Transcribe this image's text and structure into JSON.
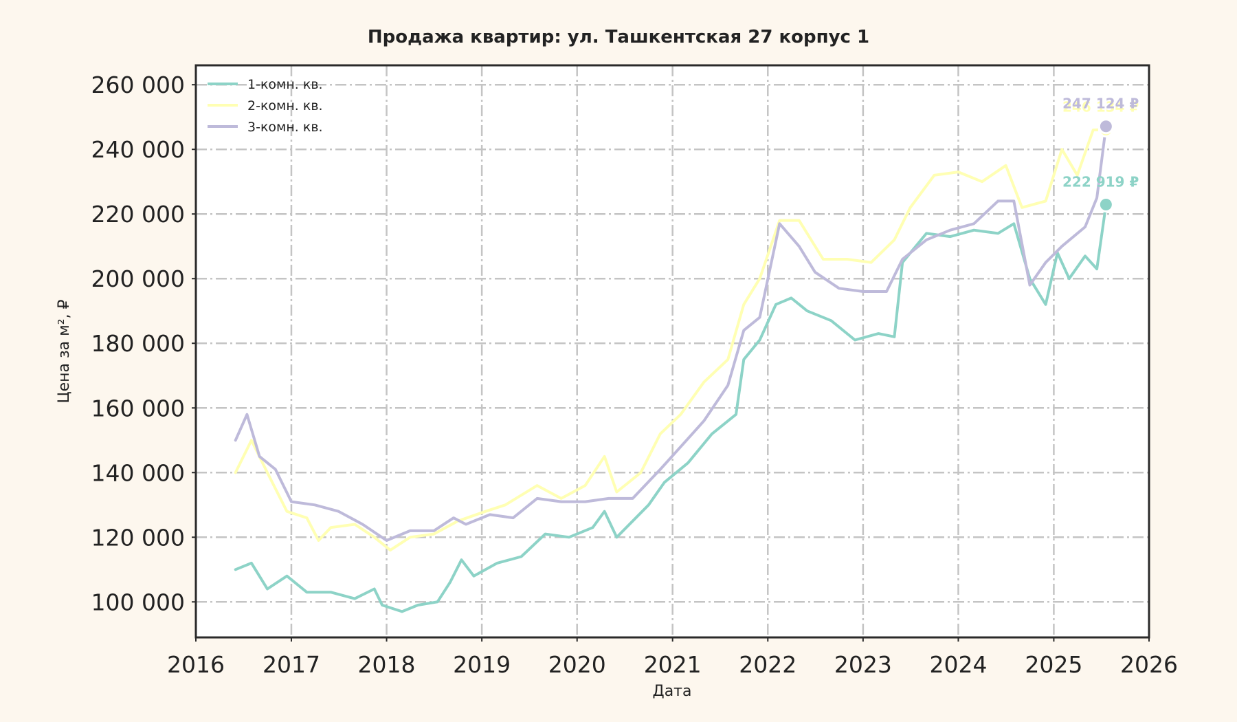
{
  "chart_data": {
    "type": "line",
    "title": "Продажа квартир: ул. Ташкентская 27 корпус 1",
    "xlabel": "Дата",
    "ylabel": "Цена за м², ₽",
    "xlim": [
      "2016-01-01",
      "2026-01-01"
    ],
    "ylim": [
      89000,
      266000
    ],
    "x_ticks": [
      "2016",
      "2017",
      "2018",
      "2019",
      "2020",
      "2021",
      "2022",
      "2023",
      "2024",
      "2025",
      "2026"
    ],
    "y_ticks": [
      {
        "value": 100000,
        "label": "100 000"
      },
      {
        "value": 120000,
        "label": "120 000"
      },
      {
        "value": 140000,
        "label": "140 000"
      },
      {
        "value": 160000,
        "label": "160 000"
      },
      {
        "value": 180000,
        "label": "180 000"
      },
      {
        "value": 200000,
        "label": "200 000"
      },
      {
        "value": 220000,
        "label": "220 000"
      },
      {
        "value": 240000,
        "label": "240 000"
      },
      {
        "value": 260000,
        "label": "260 000"
      }
    ],
    "grid": true,
    "legend_position": "top-left",
    "series": [
      {
        "name": "1-комн. кв.",
        "color": "#8dd3c7",
        "points": [
          [
            "2016-06-01",
            110000
          ],
          [
            "2016-08-01",
            112000
          ],
          [
            "2016-10-01",
            104000
          ],
          [
            "2016-12-15",
            108000
          ],
          [
            "2017-03-01",
            103000
          ],
          [
            "2017-06-01",
            103000
          ],
          [
            "2017-09-01",
            101000
          ],
          [
            "2017-11-15",
            104000
          ],
          [
            "2017-12-15",
            99000
          ],
          [
            "2018-03-01",
            97000
          ],
          [
            "2018-05-01",
            99000
          ],
          [
            "2018-07-15",
            100000
          ],
          [
            "2018-09-01",
            106000
          ],
          [
            "2018-10-15",
            113000
          ],
          [
            "2018-12-01",
            108000
          ],
          [
            "2019-03-01",
            112000
          ],
          [
            "2019-06-01",
            114000
          ],
          [
            "2019-09-01",
            121000
          ],
          [
            "2019-12-01",
            120000
          ],
          [
            "2020-03-01",
            123000
          ],
          [
            "2020-04-15",
            128000
          ],
          [
            "2020-06-01",
            120000
          ],
          [
            "2020-08-01",
            125000
          ],
          [
            "2020-10-01",
            130000
          ],
          [
            "2020-12-01",
            137000
          ],
          [
            "2021-03-01",
            143000
          ],
          [
            "2021-06-01",
            152000
          ],
          [
            "2021-09-01",
            158000
          ],
          [
            "2021-10-01",
            175000
          ],
          [
            "2021-12-01",
            181000
          ],
          [
            "2022-02-01",
            192000
          ],
          [
            "2022-04-01",
            194000
          ],
          [
            "2022-06-01",
            190000
          ],
          [
            "2022-09-01",
            187000
          ],
          [
            "2022-12-01",
            181000
          ],
          [
            "2023-03-01",
            183000
          ],
          [
            "2023-05-01",
            182000
          ],
          [
            "2023-06-01",
            205000
          ],
          [
            "2023-09-01",
            214000
          ],
          [
            "2023-12-01",
            213000
          ],
          [
            "2024-03-01",
            215000
          ],
          [
            "2024-06-01",
            214000
          ],
          [
            "2024-08-01",
            217000
          ],
          [
            "2024-10-01",
            200000
          ],
          [
            "2024-12-01",
            192000
          ],
          [
            "2025-01-15",
            208000
          ],
          [
            "2025-03-01",
            200000
          ],
          [
            "2025-05-01",
            207000
          ],
          [
            "2025-06-15",
            203000
          ],
          [
            "2025-07-20",
            222919
          ]
        ],
        "last_value": 222919,
        "last_label": "222 919 ₽"
      },
      {
        "name": "2-комн. кв.",
        "color": "#ffffb3",
        "points": [
          [
            "2016-06-01",
            140000
          ],
          [
            "2016-08-01",
            150000
          ],
          [
            "2016-10-01",
            140000
          ],
          [
            "2016-12-15",
            128000
          ],
          [
            "2017-03-01",
            126000
          ],
          [
            "2017-04-15",
            119000
          ],
          [
            "2017-06-01",
            123000
          ],
          [
            "2017-09-01",
            124000
          ],
          [
            "2017-11-15",
            120000
          ],
          [
            "2018-01-15",
            116000
          ],
          [
            "2018-04-01",
            120000
          ],
          [
            "2018-07-01",
            121000
          ],
          [
            "2018-10-01",
            125000
          ],
          [
            "2019-01-15",
            128000
          ],
          [
            "2019-04-01",
            130000
          ],
          [
            "2019-08-01",
            136000
          ],
          [
            "2019-11-01",
            132000
          ],
          [
            "2020-02-01",
            136000
          ],
          [
            "2020-04-15",
            145000
          ],
          [
            "2020-06-01",
            134000
          ],
          [
            "2020-09-01",
            140000
          ],
          [
            "2020-11-15",
            152000
          ],
          [
            "2021-02-01",
            158000
          ],
          [
            "2021-05-01",
            168000
          ],
          [
            "2021-08-01",
            175000
          ],
          [
            "2021-10-01",
            192000
          ],
          [
            "2021-12-01",
            200000
          ],
          [
            "2022-02-15",
            218000
          ],
          [
            "2022-05-01",
            218000
          ],
          [
            "2022-08-01",
            206000
          ],
          [
            "2022-11-01",
            206000
          ],
          [
            "2023-02-01",
            205000
          ],
          [
            "2023-05-01",
            212000
          ],
          [
            "2023-07-01",
            222000
          ],
          [
            "2023-10-01",
            232000
          ],
          [
            "2024-01-01",
            233000
          ],
          [
            "2024-04-01",
            230000
          ],
          [
            "2024-07-01",
            235000
          ],
          [
            "2024-09-01",
            222000
          ],
          [
            "2024-12-01",
            224000
          ],
          [
            "2025-02-01",
            240000
          ],
          [
            "2025-04-01",
            232000
          ],
          [
            "2025-06-01",
            246000
          ],
          [
            "2025-07-20",
            246134
          ]
        ],
        "last_value": 246134,
        "last_label": "246 134 ₽"
      },
      {
        "name": "3-комн. кв.",
        "color": "#bebada",
        "points": [
          [
            "2016-06-01",
            150000
          ],
          [
            "2016-07-15",
            158000
          ],
          [
            "2016-09-01",
            145000
          ],
          [
            "2016-11-01",
            141000
          ],
          [
            "2017-01-01",
            131000
          ],
          [
            "2017-04-01",
            130000
          ],
          [
            "2017-07-01",
            128000
          ],
          [
            "2017-10-01",
            124000
          ],
          [
            "2018-01-01",
            119000
          ],
          [
            "2018-04-01",
            122000
          ],
          [
            "2018-07-01",
            122000
          ],
          [
            "2018-09-15",
            126000
          ],
          [
            "2018-11-01",
            124000
          ],
          [
            "2019-02-01",
            127000
          ],
          [
            "2019-05-01",
            126000
          ],
          [
            "2019-08-01",
            132000
          ],
          [
            "2019-11-01",
            131000
          ],
          [
            "2020-02-01",
            131000
          ],
          [
            "2020-05-01",
            132000
          ],
          [
            "2020-08-01",
            132000
          ],
          [
            "2020-11-15",
            141000
          ],
          [
            "2021-02-01",
            148000
          ],
          [
            "2021-05-01",
            156000
          ],
          [
            "2021-08-01",
            167000
          ],
          [
            "2021-10-01",
            184000
          ],
          [
            "2021-12-01",
            188000
          ],
          [
            "2022-02-15",
            217000
          ],
          [
            "2022-05-01",
            210000
          ],
          [
            "2022-07-01",
            202000
          ],
          [
            "2022-10-01",
            197000
          ],
          [
            "2023-01-01",
            196000
          ],
          [
            "2023-04-01",
            196000
          ],
          [
            "2023-06-01",
            206000
          ],
          [
            "2023-09-01",
            212000
          ],
          [
            "2023-12-01",
            215000
          ],
          [
            "2024-03-01",
            217000
          ],
          [
            "2024-06-01",
            224000
          ],
          [
            "2024-08-01",
            224000
          ],
          [
            "2024-10-01",
            198000
          ],
          [
            "2024-12-01",
            205000
          ],
          [
            "2025-02-01",
            210000
          ],
          [
            "2025-05-01",
            216000
          ],
          [
            "2025-06-15",
            225000
          ],
          [
            "2025-07-20",
            247124
          ]
        ],
        "last_value": 247124,
        "last_label": "247 124 ₽"
      }
    ]
  }
}
